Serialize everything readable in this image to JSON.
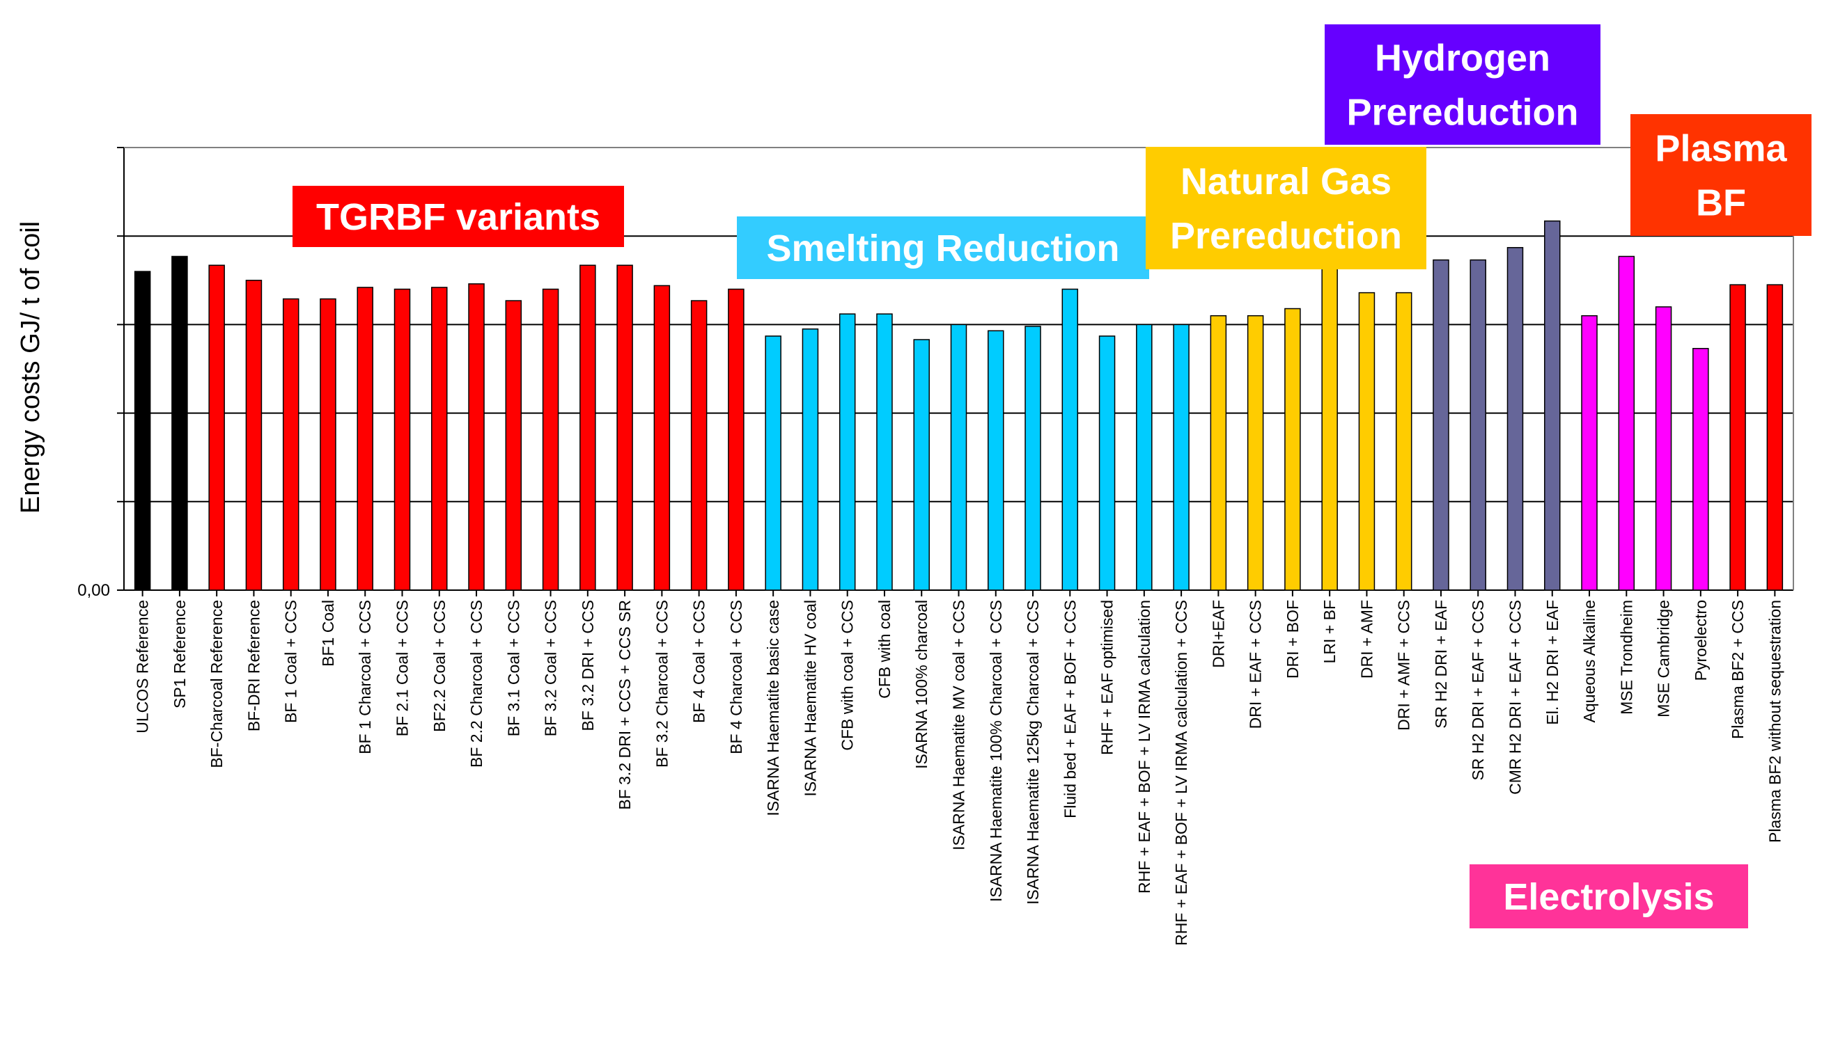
{
  "chart_data": {
    "type": "bar",
    "title": "",
    "xlabel": "",
    "ylabel": "Energy costs GJ/ t of coil",
    "ytick_labels": [
      "0,00"
    ],
    "ylim": [
      0,
      5
    ],
    "grid": true,
    "categories": [
      "ULCOS Reference",
      "SP1 Reference",
      "BF-Charcoal Reference",
      "BF-DRI Reference",
      "BF 1 Coal + CCS",
      "BF1 Coal",
      "BF 1 Charcoal + CCS",
      "BF 2.1 Coal + CCS",
      "BF2.2 Coal + CCS",
      "BF 2.2 Charcoal + CCS",
      "BF 3.1 Coal + CCS",
      "BF 3.2 Coal + CCS",
      "BF 3.2 DRI + CCS",
      "BF 3.2 DRI +  CCS + CCS SR",
      "BF 3.2 Charcoal + CCS",
      "BF 4 Coal + CCS",
      "BF 4 Charcoal + CCS",
      "ISARNA Haematite basic case",
      "ISARNA Haematite HV coal",
      "CFB with coal + CCS",
      "CFB with coal",
      "ISARNA 100% charcoal",
      "ISARNA Haematite MV coal + CCS",
      "ISARNA Haematite 100% Charcoal + CCS",
      "ISARNA Haematite 125kg Charcoal + CCS",
      "Fluid bed + EAF + BOF + CCS",
      "RHF + EAF optimised",
      "RHF + EAF + BOF + LV IRMA calculation",
      "RHF + EAF + BOF + LV IRMA calculation + CCS",
      "DRI+EAF",
      "DRI + EAF + CCS",
      "DRI + BOF",
      "LRI + BF",
      "DRI + AMF",
      "DRI + AMF + CCS",
      "SR H2 DRI + EAF",
      "SR H2 DRI + EAF + CCS",
      "CMR H2 DRI + EAF + CCS",
      "El. H2 DRI + EAF",
      "Aqueous Alkaline",
      "MSE Trondheim",
      "MSE Cambridge",
      "Pyroelectro",
      "Plasma BF2 + CCS",
      "Plasma BF2 without sequestration"
    ],
    "values": [
      3.6,
      3.77,
      3.67,
      3.5,
      3.29,
      3.29,
      3.42,
      3.4,
      3.42,
      3.46,
      3.27,
      3.4,
      3.67,
      3.67,
      3.44,
      3.27,
      3.4,
      2.87,
      2.95,
      3.12,
      3.12,
      2.83,
      3.0,
      2.93,
      2.98,
      3.4,
      2.87,
      3.0,
      3.0,
      3.1,
      3.1,
      3.18,
      3.7,
      3.36,
      3.36,
      3.73,
      3.73,
      3.87,
      4.17,
      3.1,
      3.77,
      3.2,
      2.73,
      3.45,
      3.45
    ],
    "bar_groups": [
      "ref",
      "ref",
      "red",
      "red",
      "red",
      "red",
      "red",
      "red",
      "red",
      "red",
      "red",
      "red",
      "red",
      "red",
      "red",
      "red",
      "red",
      "cyan",
      "cyan",
      "cyan",
      "cyan",
      "cyan",
      "cyan",
      "cyan",
      "cyan",
      "cyan",
      "cyan",
      "cyan",
      "cyan",
      "gold",
      "gold",
      "gold",
      "gold",
      "gold",
      "gold",
      "slate",
      "slate",
      "slate",
      "slate",
      "magenta",
      "magenta",
      "magenta",
      "magenta",
      "red",
      "red"
    ],
    "group_colors": {
      "ref": "#000000",
      "red": "#ff0000",
      "cyan": "#00ccff",
      "gold": "#ffcc00",
      "slate": "#666699",
      "magenta": "#ff00ff"
    },
    "reference_bar_colors": [
      "#000000",
      "#000000"
    ],
    "annotations": [
      {
        "id": "tgrbf",
        "lines": [
          "TGRBF variants"
        ],
        "color": "#ff0000"
      },
      {
        "id": "smelting",
        "lines": [
          "Smelting Reduction"
        ],
        "color": "#33ccff"
      },
      {
        "id": "natgas",
        "lines": [
          "Natural Gas",
          "Prereduction"
        ],
        "color": "#ffcc00"
      },
      {
        "id": "hydrogen",
        "lines": [
          "Hydrogen",
          "Prereduction"
        ],
        "color": "#6600ff"
      },
      {
        "id": "plasma",
        "lines": [
          "Plasma",
          "BF"
        ],
        "color": "#ff3300"
      },
      {
        "id": "electrolysis",
        "lines": [
          "Electrolysis"
        ],
        "color": "#ff3399"
      }
    ]
  }
}
